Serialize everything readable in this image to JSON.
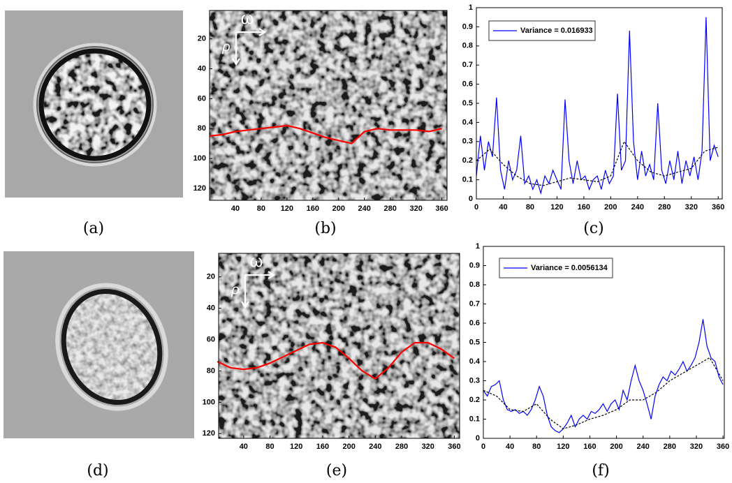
{
  "images": [
    {
      "label": "(a)"
    },
    {
      "label": "(d)"
    }
  ],
  "chart_data": [
    {
      "type": "image",
      "label": "(b)",
      "y_inverted": true,
      "annotations": [
        "ω",
        "ρ"
      ],
      "xlim": [
        0,
        368
      ],
      "ylim": [
        1,
        128
      ],
      "xticks": [
        40,
        80,
        120,
        160,
        200,
        240,
        280,
        320,
        360
      ],
      "yticks": [
        20,
        40,
        60,
        80,
        100,
        120
      ],
      "series": [
        {
          "color": "#ff0000",
          "x": [
            0,
            20,
            40,
            60,
            80,
            100,
            120,
            140,
            160,
            180,
            200,
            220,
            240,
            260,
            280,
            300,
            320,
            340,
            360
          ],
          "values": [
            85,
            84,
            82,
            81,
            80,
            79,
            78,
            80,
            83,
            86,
            88,
            90,
            82,
            80,
            81,
            81,
            81,
            82,
            80
          ]
        }
      ]
    },
    {
      "type": "line",
      "label": "(c)",
      "legend": "upper left",
      "xlim": [
        0,
        366
      ],
      "ylim": [
        0,
        1
      ],
      "xticks": [
        0,
        40,
        80,
        120,
        160,
        200,
        240,
        280,
        320,
        360
      ],
      "yticks": [
        0,
        0.1,
        0.2,
        0.3,
        0.4,
        0.5,
        0.6,
        0.7,
        0.8,
        0.9,
        1
      ],
      "series": [
        {
          "name": "Variance = 0.016933",
          "color": "#0000ff",
          "line_style": "solid",
          "x": [
            0,
            6,
            12,
            18,
            24,
            30,
            36,
            42,
            48,
            54,
            60,
            66,
            72,
            78,
            84,
            90,
            96,
            102,
            108,
            114,
            120,
            126,
            132,
            138,
            144,
            150,
            156,
            162,
            168,
            174,
            180,
            186,
            192,
            198,
            204,
            210,
            216,
            222,
            228,
            234,
            240,
            246,
            252,
            258,
            264,
            270,
            276,
            282,
            288,
            294,
            300,
            306,
            312,
            318,
            324,
            330,
            336,
            342,
            348,
            354,
            360
          ],
          "values": [
            0.12,
            0.33,
            0.15,
            0.3,
            0.22,
            0.53,
            0.15,
            0.05,
            0.2,
            0.1,
            0.15,
            0.33,
            0.08,
            0.12,
            0.05,
            0.1,
            0.03,
            0.12,
            0.08,
            0.15,
            0.1,
            0.05,
            0.52,
            0.2,
            0.08,
            0.2,
            0.1,
            0.12,
            0.05,
            0.1,
            0.12,
            0.05,
            0.15,
            0.08,
            0.12,
            0.55,
            0.15,
            0.2,
            0.88,
            0.3,
            0.1,
            0.25,
            0.12,
            0.18,
            0.1,
            0.5,
            0.15,
            0.08,
            0.2,
            0.1,
            0.25,
            0.08,
            0.2,
            0.12,
            0.22,
            0.1,
            0.25,
            0.95,
            0.2,
            0.28,
            0.22
          ]
        },
        {
          "color": "#000000",
          "line_style": "dashed",
          "x": [
            0,
            20,
            40,
            60,
            80,
            100,
            120,
            140,
            160,
            180,
            200,
            220,
            240,
            260,
            280,
            300,
            320,
            340,
            360
          ],
          "values": [
            0.2,
            0.26,
            0.18,
            0.12,
            0.08,
            0.07,
            0.09,
            0.11,
            0.1,
            0.09,
            0.12,
            0.3,
            0.2,
            0.14,
            0.12,
            0.14,
            0.16,
            0.25,
            0.27
          ]
        }
      ]
    },
    {
      "type": "image",
      "label": "(e)",
      "y_inverted": true,
      "annotations": [
        "ω",
        "ρ"
      ],
      "xlim": [
        2,
        368
      ],
      "ylim": [
        5,
        123
      ],
      "xticks": [
        40,
        80,
        120,
        160,
        200,
        240,
        280,
        320,
        360
      ],
      "yticks": [
        20,
        40,
        60,
        80,
        100,
        120
      ],
      "series": [
        {
          "color": "#ff0000",
          "x": [
            0,
            20,
            40,
            60,
            80,
            100,
            120,
            140,
            160,
            180,
            200,
            220,
            240,
            260,
            280,
            300,
            320,
            340,
            360
          ],
          "values": [
            74,
            78,
            79,
            78,
            75,
            71,
            67,
            63,
            62,
            65,
            72,
            80,
            85,
            78,
            68,
            62,
            62,
            66,
            72
          ]
        }
      ]
    },
    {
      "type": "line",
      "label": "(f)",
      "legend": "upper left",
      "xlim": [
        0,
        362
      ],
      "ylim": [
        0,
        1
      ],
      "xticks": [
        0,
        40,
        80,
        120,
        160,
        200,
        240,
        280,
        320,
        360
      ],
      "yticks": [
        0,
        0.1,
        0.2,
        0.3,
        0.4,
        0.5,
        0.6,
        0.7,
        0.8,
        0.9,
        1
      ],
      "series": [
        {
          "name": "Variance = 0.0056134",
          "color": "#0000ff",
          "line_style": "solid",
          "x": [
            0,
            6,
            12,
            18,
            24,
            30,
            36,
            42,
            48,
            54,
            60,
            66,
            72,
            78,
            84,
            90,
            96,
            102,
            108,
            114,
            120,
            126,
            132,
            138,
            144,
            150,
            156,
            162,
            168,
            174,
            180,
            186,
            192,
            198,
            204,
            210,
            216,
            222,
            228,
            234,
            240,
            246,
            252,
            258,
            264,
            270,
            276,
            282,
            288,
            294,
            300,
            306,
            312,
            318,
            324,
            330,
            336,
            342,
            348,
            354,
            360
          ],
          "values": [
            0.25,
            0.22,
            0.27,
            0.28,
            0.3,
            0.2,
            0.15,
            0.14,
            0.15,
            0.13,
            0.14,
            0.12,
            0.15,
            0.2,
            0.27,
            0.22,
            0.12,
            0.06,
            0.04,
            0.03,
            0.05,
            0.08,
            0.12,
            0.06,
            0.1,
            0.12,
            0.1,
            0.14,
            0.13,
            0.15,
            0.18,
            0.14,
            0.18,
            0.2,
            0.15,
            0.25,
            0.2,
            0.3,
            0.38,
            0.3,
            0.25,
            0.18,
            0.1,
            0.22,
            0.28,
            0.32,
            0.3,
            0.35,
            0.33,
            0.36,
            0.4,
            0.35,
            0.38,
            0.42,
            0.5,
            0.62,
            0.48,
            0.42,
            0.4,
            0.32,
            0.28
          ]
        },
        {
          "color": "#000000",
          "line_style": "dashed",
          "x": [
            0,
            20,
            40,
            60,
            80,
            100,
            120,
            140,
            160,
            180,
            200,
            220,
            240,
            260,
            280,
            300,
            320,
            340,
            360
          ],
          "values": [
            0.25,
            0.22,
            0.15,
            0.14,
            0.18,
            0.1,
            0.05,
            0.07,
            0.1,
            0.12,
            0.15,
            0.2,
            0.2,
            0.24,
            0.3,
            0.34,
            0.38,
            0.42,
            0.3
          ]
        }
      ]
    }
  ]
}
